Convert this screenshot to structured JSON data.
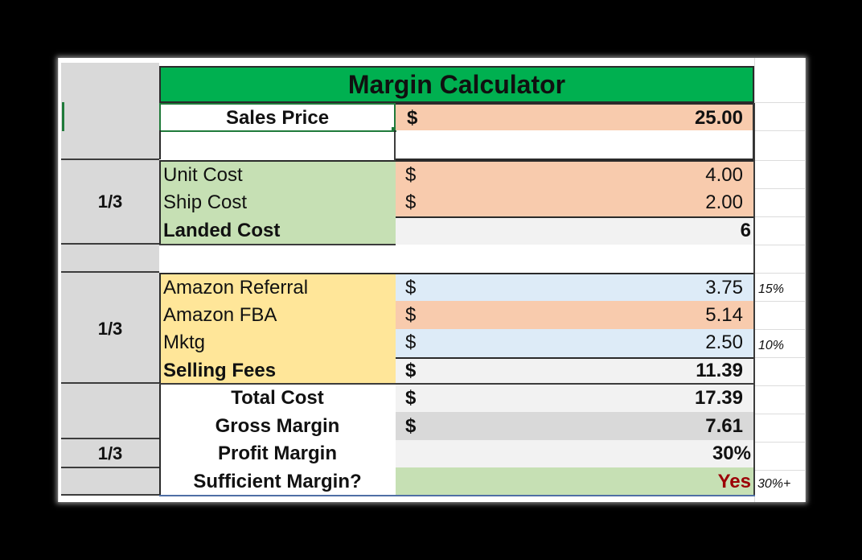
{
  "title": "Margin Calculator",
  "sales_price": {
    "label": "Sales Price",
    "currency": "$",
    "value": "25.00"
  },
  "cogs": {
    "group_ratio": "1/3",
    "unit_cost": {
      "label": "Unit Cost",
      "currency": "$",
      "value": "4.00"
    },
    "ship_cost": {
      "label": "Ship Cost",
      "currency": "$",
      "value": "2.00"
    },
    "landed_cost": {
      "label": "Landed Cost",
      "value": "6"
    }
  },
  "fees": {
    "group_ratio": "1/3",
    "amazon_referral": {
      "label": "Amazon Referral",
      "currency": "$",
      "value": "3.75",
      "note": "15%"
    },
    "amazon_fba": {
      "label": "Amazon FBA",
      "currency": "$",
      "value": "5.14"
    },
    "mktg": {
      "label": "Mktg",
      "currency": "$",
      "value": "2.50",
      "note": "10%"
    },
    "selling_fees": {
      "label": "Selling Fees",
      "currency": "$",
      "value": "11.39"
    }
  },
  "summary": {
    "total_cost": {
      "label": "Total Cost",
      "currency": "$",
      "value": "17.39"
    },
    "gross_margin": {
      "label": "Gross Margin",
      "currency": "$",
      "value": "7.61"
    },
    "profit_margin": {
      "label": "Profit Margin",
      "value": "30%",
      "group_ratio": "1/3"
    },
    "sufficient_margin": {
      "label": "Sufficient Margin?",
      "value": "Yes",
      "note": "30%+"
    }
  },
  "colors": {
    "title_bg": "#00b050",
    "input_bg": "#f8cbad",
    "cogs_label_bg": "#c6e0b4",
    "fees_label_bg": "#ffe699",
    "calc_blue_bg": "#ddebf7",
    "calc_gray_bg": "#f2f2f2",
    "gross_margin_bg": "#d9d9d9",
    "yes_bg": "#c6e0b4",
    "yes_text": "#9c0006",
    "side_col_bg": "#d9d9d9"
  }
}
